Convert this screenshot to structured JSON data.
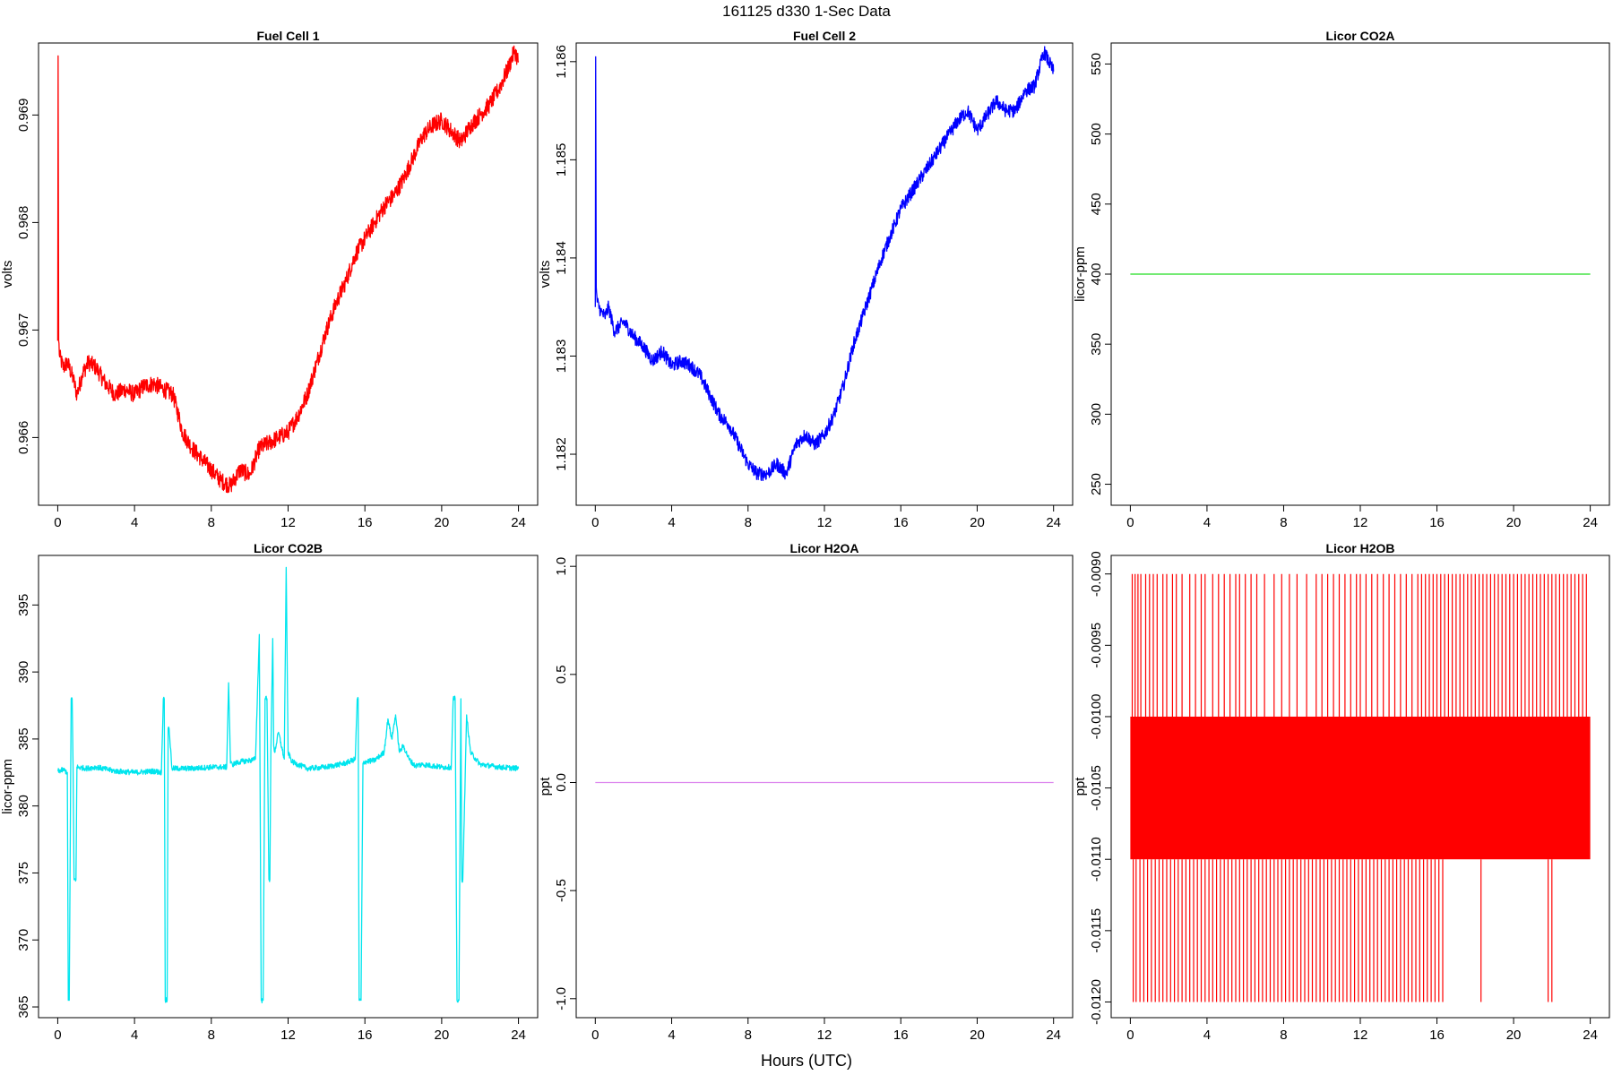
{
  "figure": {
    "main_title": "161125   d330   1-Sec Data",
    "common_xlabel": "Hours (UTC)"
  },
  "chart_data": [
    {
      "type": "line",
      "title": "Fuel Cell 1",
      "xlabel": "",
      "ylabel": "volts",
      "color": "#ff0000",
      "xlim": [
        -1,
        25
      ],
      "ylim": [
        0.96537,
        0.96967
      ],
      "xticks": [
        0,
        4,
        8,
        12,
        16,
        20,
        24
      ],
      "yticks": [
        0.966,
        0.967,
        0.968,
        0.969
      ],
      "ytick_labels": [
        "0.966",
        "0.967",
        "0.968",
        "0.969"
      ],
      "noise": 8e-05,
      "x": [
        0,
        0.02,
        0.05,
        0.1,
        0.3,
        0.5,
        0.8,
        1.0,
        1.3,
        1.6,
        2.0,
        2.5,
        3.0,
        3.5,
        4.0,
        4.5,
        5.0,
        5.5,
        6.0,
        6.3,
        6.5,
        7.0,
        7.5,
        8.0,
        8.5,
        9.0,
        9.5,
        10.0,
        10.5,
        11.0,
        11.5,
        12.0,
        12.5,
        13.0,
        13.5,
        14.0,
        14.5,
        15.0,
        15.5,
        16.0,
        16.5,
        17.0,
        17.5,
        18.0,
        18.5,
        19.0,
        19.5,
        20.0,
        20.5,
        21.0,
        21.5,
        22.0,
        22.5,
        23.0,
        23.5,
        23.8,
        24.0
      ],
      "y": [
        0.9669,
        0.96955,
        0.9669,
        0.96675,
        0.96665,
        0.9667,
        0.96655,
        0.9664,
        0.9666,
        0.9667,
        0.96665,
        0.9665,
        0.9664,
        0.96645,
        0.9664,
        0.96648,
        0.9665,
        0.96645,
        0.9664,
        0.9662,
        0.96605,
        0.9659,
        0.9658,
        0.9657,
        0.9656,
        0.96555,
        0.9657,
        0.96565,
        0.9659,
        0.96595,
        0.966,
        0.96605,
        0.9662,
        0.9664,
        0.9667,
        0.967,
        0.96725,
        0.96745,
        0.9677,
        0.96785,
        0.968,
        0.96815,
        0.96825,
        0.9684,
        0.9686,
        0.9688,
        0.9689,
        0.96895,
        0.96885,
        0.96875,
        0.9689,
        0.969,
        0.9691,
        0.96925,
        0.96945,
        0.9696,
        0.9695
      ]
    },
    {
      "type": "line",
      "title": "Fuel Cell 2",
      "xlabel": "",
      "ylabel": "volts",
      "color": "#0000ff",
      "xlim": [
        -1,
        25
      ],
      "ylim": [
        1.18148,
        1.18619
      ],
      "xticks": [
        0,
        4,
        8,
        12,
        16,
        20,
        24
      ],
      "yticks": [
        1.182,
        1.183,
        1.184,
        1.185,
        1.186
      ],
      "ytick_labels": [
        "1.182",
        "1.183",
        "1.184",
        "1.185",
        "1.186"
      ],
      "noise": 7e-05,
      "x": [
        0,
        0.02,
        0.05,
        0.1,
        0.3,
        0.5,
        0.7,
        1.0,
        1.5,
        2.0,
        2.5,
        3.0,
        3.5,
        4.0,
        4.5,
        5.0,
        5.5,
        6.0,
        6.5,
        7.0,
        7.5,
        8.0,
        8.5,
        9.0,
        9.5,
        10.0,
        10.5,
        11.0,
        11.5,
        12.0,
        12.5,
        13.0,
        13.5,
        14.0,
        14.5,
        15.0,
        15.5,
        16.0,
        16.5,
        17.0,
        17.5,
        18.0,
        18.5,
        19.0,
        19.5,
        20.0,
        20.5,
        21.0,
        21.5,
        22.0,
        22.5,
        23.0,
        23.5,
        24.0
      ],
      "y": [
        1.1835,
        1.18605,
        1.1837,
        1.18355,
        1.18345,
        1.1834,
        1.1835,
        1.18325,
        1.18335,
        1.1832,
        1.1831,
        1.18295,
        1.18305,
        1.1829,
        1.18295,
        1.1829,
        1.1828,
        1.1826,
        1.1824,
        1.1823,
        1.1821,
        1.1819,
        1.1818,
        1.1818,
        1.1819,
        1.1818,
        1.1821,
        1.1822,
        1.1821,
        1.1822,
        1.1824,
        1.1827,
        1.1831,
        1.1834,
        1.1837,
        1.184,
        1.18425,
        1.1845,
        1.18465,
        1.1848,
        1.18495,
        1.1851,
        1.18525,
        1.1854,
        1.1855,
        1.1853,
        1.18545,
        1.1856,
        1.1855,
        1.1855,
        1.1857,
        1.18575,
        1.1861,
        1.1859
      ]
    },
    {
      "type": "line",
      "title": "Licor CO2A",
      "xlabel": "",
      "ylabel": "licor-ppm",
      "color": "#22dd22",
      "xlim": [
        -1,
        25
      ],
      "ylim": [
        235,
        565
      ],
      "xticks": [
        0,
        4,
        8,
        12,
        16,
        20,
        24
      ],
      "yticks": [
        250,
        300,
        350,
        400,
        450,
        500,
        550
      ],
      "ytick_labels": [
        "250",
        "300",
        "350",
        "400",
        "450",
        "500",
        "550"
      ],
      "noise": 0,
      "x": [
        0,
        24
      ],
      "y": [
        400,
        400
      ]
    },
    {
      "type": "line",
      "title": "Licor CO2B",
      "xlabel": "",
      "ylabel": "licor-ppm",
      "color": "#00e5ee",
      "xlim": [
        -1,
        25
      ],
      "ylim": [
        364.2,
        398.7
      ],
      "xticks": [
        0,
        4,
        8,
        12,
        16,
        20,
        24
      ],
      "yticks": [
        365,
        370,
        375,
        380,
        385,
        390,
        395
      ],
      "ytick_labels": [
        "365",
        "370",
        "375",
        "380",
        "385",
        "390",
        "395"
      ],
      "noise": 0.2,
      "x": [
        0,
        0.3,
        0.5,
        0.55,
        0.6,
        0.7,
        0.75,
        0.8,
        0.85,
        0.95,
        1.0,
        1.5,
        2.0,
        3.0,
        4.0,
        5.0,
        5.4,
        5.5,
        5.55,
        5.6,
        5.7,
        5.75,
        5.8,
        5.95,
        6.0,
        7.0,
        8.0,
        8.8,
        8.9,
        9.0,
        9.1,
        9.5,
        10.0,
        10.3,
        10.5,
        10.6,
        10.7,
        10.8,
        10.9,
        11.0,
        11.05,
        11.1,
        11.2,
        11.25,
        11.3,
        11.5,
        11.8,
        11.9,
        12.0,
        12.2,
        12.5,
        13.0,
        14.0,
        15.0,
        15.5,
        15.6,
        15.65,
        15.7,
        15.8,
        15.9,
        16.0,
        16.5,
        17.0,
        17.2,
        17.4,
        17.6,
        17.8,
        18.0,
        18.3,
        18.6,
        19.0,
        20.0,
        20.5,
        20.6,
        20.7,
        20.8,
        20.9,
        21.0,
        21.05,
        21.1,
        21.3,
        21.5,
        22.0,
        23.0,
        24.0
      ],
      "y": [
        382.6,
        382.7,
        382.5,
        365.5,
        365.5,
        388,
        388,
        382.8,
        374.5,
        374.5,
        382.9,
        382.8,
        382.9,
        382.6,
        382.5,
        382.6,
        382.5,
        388,
        388,
        365.5,
        365.5,
        385.8,
        385.8,
        382.8,
        382.8,
        382.8,
        382.9,
        382.9,
        389.2,
        383.2,
        383.1,
        383.3,
        383.4,
        383.5,
        392.8,
        365.5,
        365.5,
        388,
        388,
        374.5,
        374.5,
        383.8,
        392.5,
        384.5,
        384,
        385.5,
        383.5,
        397.8,
        384,
        383.3,
        383.1,
        382.8,
        382.9,
        383.2,
        383.5,
        388,
        388,
        365.5,
        365.5,
        383.2,
        383.3,
        383.4,
        384,
        386.5,
        385,
        386.8,
        384,
        384.5,
        383.5,
        383,
        383.1,
        382.9,
        382.9,
        388,
        388,
        365.5,
        365.5,
        388,
        374.5,
        374.5,
        386.8,
        384,
        383.1,
        382.9,
        382.8
      ]
    },
    {
      "type": "line",
      "title": "Licor H2OA",
      "xlabel": "",
      "ylabel": "ppt",
      "color": "#dd88ee",
      "xlim": [
        -1,
        25
      ],
      "ylim": [
        -1.0879,
        1.0505
      ],
      "xticks": [
        0,
        4,
        8,
        12,
        16,
        20,
        24
      ],
      "yticks": [
        -1.0,
        -0.5,
        0.0,
        0.5,
        1.0
      ],
      "ytick_labels": [
        "-1.0",
        "-0.5",
        "0.0",
        "0.5",
        "1.0"
      ],
      "noise": 0,
      "x": [
        0,
        24
      ],
      "y": [
        0,
        0
      ]
    },
    {
      "type": "line",
      "title": "Licor H2OB",
      "xlabel": "",
      "ylabel": "ppt",
      "color": "#ff0000",
      "xlim": [
        -1,
        25
      ],
      "ylim": [
        -0.01211,
        -0.00887
      ],
      "xticks": [
        0,
        4,
        8,
        12,
        16,
        20,
        24
      ],
      "yticks": [
        -0.012,
        -0.0115,
        -0.011,
        -0.0105,
        -0.01,
        -0.0095,
        -0.009
      ],
      "ytick_labels": [
        "-0.0120",
        "-0.0115",
        "-0.0110",
        "-0.0105",
        "-0.0100",
        "-0.0095",
        "-0.0090"
      ],
      "band": {
        "x": [
          0,
          24
        ],
        "y": [
          -0.011,
          -0.01
        ]
      },
      "spikes_up_x": [
        0.1,
        0.25,
        0.4,
        0.55,
        0.8,
        1.0,
        1.2,
        1.4,
        1.7,
        1.9,
        2.2,
        2.4,
        2.7,
        3.1,
        3.4,
        3.7,
        3.9,
        4.3,
        4.6,
        4.9,
        5.2,
        5.5,
        5.7,
        6.0,
        6.3,
        6.6,
        7.0,
        7.5,
        7.9,
        8.3,
        8.7,
        9.2,
        9.7,
        10.0,
        10.3,
        10.6,
        10.9,
        11.2,
        11.5,
        11.8,
        12.0,
        12.3,
        12.6,
        12.9,
        13.2,
        13.5,
        13.8,
        14.1,
        14.4,
        14.7,
        15.0,
        15.2,
        15.4,
        15.6,
        15.8,
        16.0,
        16.2,
        16.4,
        16.6,
        16.8,
        17.0,
        17.2,
        17.4,
        17.6,
        17.8,
        18.0,
        18.2,
        18.4,
        18.6,
        18.8,
        19.0,
        19.2,
        19.4,
        19.6,
        19.8,
        20.0,
        20.2,
        20.4,
        20.6,
        20.8,
        21.0,
        21.2,
        21.4,
        21.6,
        21.8,
        22.0,
        22.2,
        22.4,
        22.6,
        22.8,
        23.0,
        23.2,
        23.4,
        23.6,
        23.8
      ],
      "spikes_down_x": [
        0.15,
        0.3,
        0.5,
        0.7,
        0.9,
        1.1,
        1.3,
        1.5,
        1.7,
        1.9,
        2.1,
        2.3,
        2.5,
        2.7,
        2.9,
        3.1,
        3.3,
        3.5,
        3.7,
        3.9,
        4.1,
        4.3,
        4.5,
        4.7,
        4.9,
        5.1,
        5.3,
        5.5,
        5.7,
        5.9,
        6.1,
        6.3,
        6.5,
        6.7,
        6.9,
        7.1,
        7.3,
        7.5,
        7.7,
        7.9,
        8.1,
        8.3,
        8.5,
        8.7,
        8.9,
        9.1,
        9.3,
        9.5,
        9.7,
        9.9,
        10.1,
        10.3,
        10.5,
        10.7,
        10.9,
        11.1,
        11.3,
        11.5,
        11.7,
        11.9,
        12.1,
        12.3,
        12.5,
        12.7,
        12.9,
        13.1,
        13.3,
        13.5,
        13.7,
        13.9,
        14.1,
        14.3,
        14.5,
        14.7,
        14.9,
        15.1,
        15.3,
        15.5,
        15.7,
        15.9,
        16.1,
        16.3,
        18.3,
        21.8,
        22.0
      ],
      "spike_top": -0.009,
      "spike_bottom": -0.012
    }
  ]
}
